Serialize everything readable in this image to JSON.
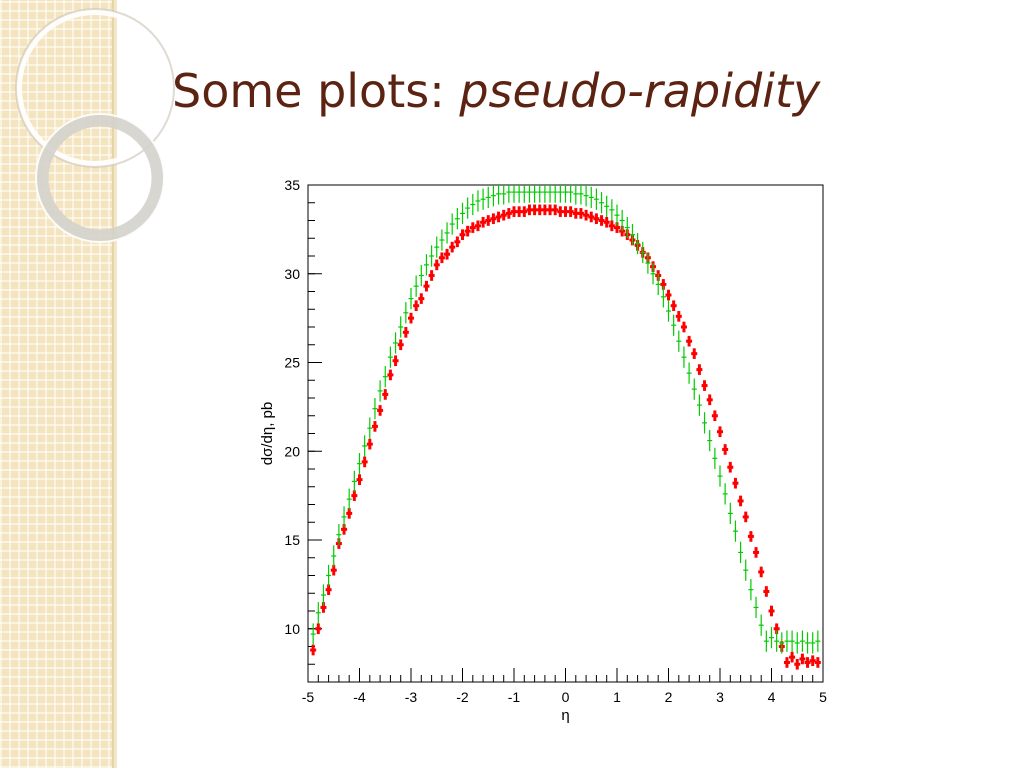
{
  "slide": {
    "title_prefix": "Some plots: ",
    "title_italic": "pseudo-rapidity",
    "accent_color": "#5c2312",
    "sidebar_color": "#f4e4bf"
  },
  "chart_data": {
    "type": "scatter",
    "title": "",
    "xlabel": "η",
    "ylabel": "dσ/dη, pb",
    "xlim": [
      -5,
      5
    ],
    "ylim": [
      7,
      35
    ],
    "x_ticks": [
      "-5",
      "-4",
      "-3",
      "-2",
      "-1",
      "0",
      "1",
      "2",
      "3",
      "4",
      "5"
    ],
    "y_ticks": [
      "10",
      "15",
      "20",
      "25",
      "30",
      "35"
    ],
    "grid": false,
    "legend": false,
    "x": [
      -4.9,
      -4.8,
      -4.7,
      -4.6,
      -4.5,
      -4.4,
      -4.3,
      -4.2,
      -4.1,
      -4.0,
      -3.9,
      -3.8,
      -3.7,
      -3.6,
      -3.5,
      -3.4,
      -3.3,
      -3.2,
      -3.1,
      -3.0,
      -2.9,
      -2.8,
      -2.7,
      -2.6,
      -2.5,
      -2.4,
      -2.3,
      -2.2,
      -2.1,
      -2.0,
      -1.9,
      -1.8,
      -1.7,
      -1.6,
      -1.5,
      -1.4,
      -1.3,
      -1.2,
      -1.1,
      -1.0,
      -0.9,
      -0.8,
      -0.7,
      -0.6,
      -0.5,
      -0.4,
      -0.3,
      -0.2,
      -0.1,
      0.0,
      0.1,
      0.2,
      0.3,
      0.4,
      0.5,
      0.6,
      0.7,
      0.8,
      0.9,
      1.0,
      1.1,
      1.2,
      1.3,
      1.4,
      1.5,
      1.6,
      1.7,
      1.8,
      1.9,
      2.0,
      2.1,
      2.2,
      2.3,
      2.4,
      2.5,
      2.6,
      2.7,
      2.8,
      2.9,
      3.0,
      3.1,
      3.2,
      3.3,
      3.4,
      3.5,
      3.6,
      3.7,
      3.8,
      3.9,
      4.0,
      4.1,
      4.2,
      4.3,
      4.4,
      4.5,
      4.6,
      4.7,
      4.8,
      4.9
    ],
    "series": [
      {
        "color": "#ff0000",
        "y": [
          8.8,
          10.0,
          11.2,
          12.2,
          13.3,
          14.8,
          15.6,
          16.5,
          17.5,
          18.4,
          19.4,
          20.4,
          21.4,
          22.3,
          23.2,
          24.3,
          25.1,
          26.0,
          26.7,
          27.5,
          28.2,
          28.6,
          29.3,
          29.9,
          30.5,
          30.9,
          31.1,
          31.5,
          31.8,
          32.2,
          32.4,
          32.6,
          32.7,
          32.9,
          33.0,
          33.1,
          33.2,
          33.3,
          33.4,
          33.5,
          33.5,
          33.5,
          33.6,
          33.6,
          33.6,
          33.6,
          33.6,
          33.6,
          33.5,
          33.5,
          33.5,
          33.4,
          33.4,
          33.3,
          33.2,
          33.1,
          33.0,
          32.9,
          32.7,
          32.6,
          32.4,
          32.2,
          31.9,
          31.6,
          31.2,
          30.9,
          30.4,
          29.9,
          29.4,
          28.8,
          28.2,
          27.6,
          27.0,
          26.2,
          25.5,
          24.6,
          23.7,
          22.9,
          22.0,
          21.1,
          20.1,
          19.1,
          18.2,
          17.2,
          16.3,
          15.2,
          14.3,
          13.2,
          12.1,
          11.0,
          10.0,
          9.0,
          8.1,
          8.4,
          8.0,
          8.3,
          8.1,
          8.2,
          8.1
        ],
        "err": [
          0.3,
          0.3,
          0.3,
          0.3,
          0.3,
          0.3,
          0.3,
          0.3,
          0.3,
          0.3,
          0.3,
          0.3,
          0.3,
          0.3,
          0.3,
          0.3,
          0.3,
          0.3,
          0.3,
          0.3,
          0.3,
          0.3,
          0.3,
          0.3,
          0.3,
          0.3,
          0.3,
          0.3,
          0.3,
          0.3,
          0.3,
          0.3,
          0.3,
          0.3,
          0.3,
          0.3,
          0.3,
          0.3,
          0.3,
          0.3,
          0.3,
          0.3,
          0.3,
          0.3,
          0.3,
          0.3,
          0.3,
          0.3,
          0.3,
          0.3,
          0.3,
          0.3,
          0.3,
          0.3,
          0.3,
          0.3,
          0.3,
          0.3,
          0.3,
          0.3,
          0.3,
          0.3,
          0.3,
          0.3,
          0.3,
          0.3,
          0.3,
          0.3,
          0.3,
          0.3,
          0.3,
          0.3,
          0.3,
          0.3,
          0.3,
          0.3,
          0.3,
          0.3,
          0.3,
          0.3,
          0.3,
          0.3,
          0.3,
          0.3,
          0.3,
          0.3,
          0.3,
          0.3,
          0.3,
          0.3,
          0.3,
          0.3,
          0.3,
          0.3,
          0.3,
          0.3,
          0.3,
          0.3,
          0.3
        ]
      },
      {
        "color": "#00cc00",
        "y": [
          9.7,
          10.9,
          11.9,
          13.0,
          14.1,
          15.3,
          16.3,
          17.3,
          18.3,
          19.3,
          20.3,
          21.3,
          22.4,
          23.4,
          24.2,
          25.3,
          26.1,
          27.0,
          27.8,
          28.6,
          29.3,
          29.9,
          30.5,
          31.0,
          31.5,
          31.9,
          32.3,
          32.8,
          33.1,
          33.4,
          33.7,
          33.9,
          34.1,
          34.2,
          34.3,
          34.4,
          34.5,
          34.5,
          34.6,
          34.6,
          34.6,
          34.6,
          34.6,
          34.6,
          34.6,
          34.6,
          34.6,
          34.6,
          34.6,
          34.6,
          34.6,
          34.5,
          34.5,
          34.4,
          34.3,
          34.2,
          34.0,
          33.8,
          33.6,
          33.3,
          33.0,
          32.6,
          32.2,
          31.7,
          31.2,
          30.6,
          30.0,
          29.4,
          28.7,
          27.9,
          27.1,
          26.2,
          25.3,
          24.4,
          23.5,
          22.6,
          21.6,
          20.6,
          19.6,
          18.6,
          17.6,
          16.5,
          15.5,
          14.3,
          13.3,
          12.2,
          11.2,
          10.2,
          9.3,
          9.5,
          9.3,
          9.2,
          9.3,
          9.3,
          9.2,
          9.3,
          9.2,
          9.2,
          9.3
        ],
        "err": [
          0.6,
          0.6,
          0.6,
          0.6,
          0.6,
          0.6,
          0.6,
          0.6,
          0.6,
          0.6,
          0.6,
          0.6,
          0.6,
          0.6,
          0.6,
          0.6,
          0.6,
          0.6,
          0.6,
          0.6,
          0.6,
          0.6,
          0.6,
          0.6,
          0.6,
          0.6,
          0.6,
          0.6,
          0.6,
          0.6,
          0.6,
          0.6,
          0.6,
          0.6,
          0.6,
          0.6,
          0.6,
          0.6,
          0.6,
          0.6,
          0.6,
          0.6,
          0.6,
          0.6,
          0.6,
          0.6,
          0.6,
          0.6,
          0.6,
          0.6,
          0.6,
          0.6,
          0.6,
          0.6,
          0.6,
          0.6,
          0.6,
          0.6,
          0.6,
          0.6,
          0.6,
          0.6,
          0.6,
          0.6,
          0.6,
          0.6,
          0.6,
          0.6,
          0.6,
          0.6,
          0.6,
          0.6,
          0.6,
          0.6,
          0.6,
          0.6,
          0.6,
          0.6,
          0.6,
          0.6,
          0.6,
          0.6,
          0.6,
          0.6,
          0.6,
          0.6,
          0.6,
          0.6,
          0.6,
          0.6,
          0.6,
          0.6,
          0.6,
          0.6,
          0.6,
          0.6,
          0.6,
          0.6,
          0.6
        ]
      }
    ]
  }
}
